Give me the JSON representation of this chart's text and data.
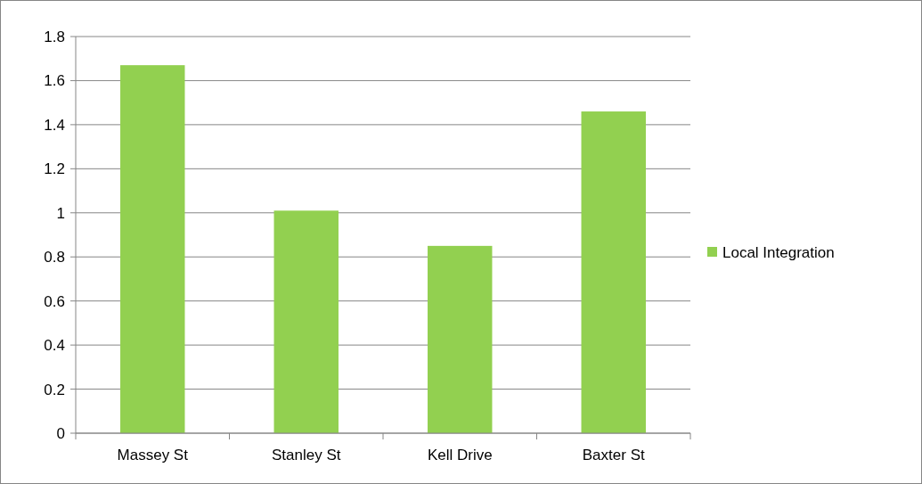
{
  "chart_data": {
    "type": "bar",
    "categories": [
      "Massey St",
      "Stanley St",
      "Kell Drive",
      "Baxter St"
    ],
    "series": [
      {
        "name": "Local Integration",
        "color": "#92d050",
        "values": [
          1.67,
          1.01,
          0.85,
          1.46
        ]
      }
    ],
    "ylim": [
      0,
      1.8
    ],
    "yticks": [
      0,
      0.2,
      0.4,
      0.6,
      0.8,
      1,
      1.2,
      1.4,
      1.6,
      1.8
    ],
    "grid": "y",
    "legend": "right"
  }
}
